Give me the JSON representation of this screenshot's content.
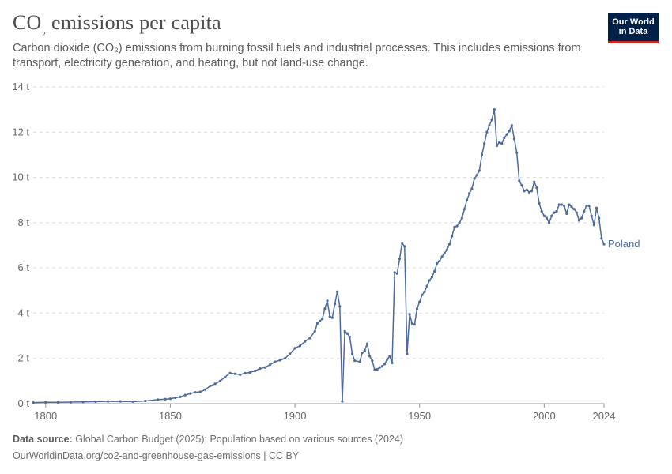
{
  "header": {
    "title_main": "CO",
    "title_sub": "₂",
    "title_rest": " emissions per capita",
    "subtitle": "Carbon dioxide (CO₂) emissions from burning fossil fuels and industrial processes. This includes emissions from transport, electricity generation, and heating, but not land-use change."
  },
  "logo": {
    "line1": "Our World",
    "line2": "in Data",
    "bg_color": "#002147",
    "accent_color": "#ce261e"
  },
  "footer": {
    "source_label": "Data source:",
    "source_text": " Global Carbon Budget (2025); Population based on various sources (2024)",
    "link": "OurWorldinData.org/co2-and-greenhouse-gas-emissions | CC BY"
  },
  "chart_data": {
    "type": "line",
    "title": "CO₂ emissions per capita",
    "xlabel": "",
    "ylabel": "",
    "xlim": [
      1795,
      2024
    ],
    "ylim": [
      0,
      14
    ],
    "grid": true,
    "y_ticks": [
      {
        "value": 0,
        "label": "0 t"
      },
      {
        "value": 2,
        "label": "2 t"
      },
      {
        "value": 4,
        "label": "4 t"
      },
      {
        "value": 6,
        "label": "6 t"
      },
      {
        "value": 8,
        "label": "8 t"
      },
      {
        "value": 10,
        "label": "10 t"
      },
      {
        "value": 12,
        "label": "12 t"
      },
      {
        "value": 14,
        "label": "14 t"
      }
    ],
    "x_ticks": [
      {
        "value": 1800,
        "label": "1800"
      },
      {
        "value": 1850,
        "label": "1850"
      },
      {
        "value": 1900,
        "label": "1900"
      },
      {
        "value": 1950,
        "label": "1950"
      },
      {
        "value": 2000,
        "label": "2000"
      },
      {
        "value": 2024,
        "label": "2024"
      }
    ],
    "series": [
      {
        "name": "Poland",
        "color": "#4c6a9c",
        "points": [
          [
            1795,
            0.05
          ],
          [
            1800,
            0.06
          ],
          [
            1805,
            0.06
          ],
          [
            1810,
            0.07
          ],
          [
            1815,
            0.08
          ],
          [
            1820,
            0.09
          ],
          [
            1825,
            0.1
          ],
          [
            1830,
            0.1
          ],
          [
            1835,
            0.09
          ],
          [
            1840,
            0.12
          ],
          [
            1845,
            0.18
          ],
          [
            1848,
            0.2
          ],
          [
            1850,
            0.22
          ],
          [
            1852,
            0.26
          ],
          [
            1854,
            0.3
          ],
          [
            1856,
            0.38
          ],
          [
            1858,
            0.45
          ],
          [
            1860,
            0.5
          ],
          [
            1862,
            0.52
          ],
          [
            1864,
            0.62
          ],
          [
            1866,
            0.78
          ],
          [
            1868,
            0.88
          ],
          [
            1870,
            1.0
          ],
          [
            1872,
            1.18
          ],
          [
            1874,
            1.35
          ],
          [
            1876,
            1.32
          ],
          [
            1878,
            1.28
          ],
          [
            1880,
            1.35
          ],
          [
            1882,
            1.38
          ],
          [
            1884,
            1.45
          ],
          [
            1886,
            1.55
          ],
          [
            1888,
            1.6
          ],
          [
            1890,
            1.72
          ],
          [
            1892,
            1.85
          ],
          [
            1894,
            1.92
          ],
          [
            1896,
            2.0
          ],
          [
            1898,
            2.2
          ],
          [
            1900,
            2.45
          ],
          [
            1902,
            2.55
          ],
          [
            1904,
            2.75
          ],
          [
            1906,
            2.9
          ],
          [
            1908,
            3.2
          ],
          [
            1909,
            3.55
          ],
          [
            1910,
            3.65
          ],
          [
            1911,
            3.75
          ],
          [
            1912,
            4.2
          ],
          [
            1913,
            4.55
          ],
          [
            1914,
            3.85
          ],
          [
            1915,
            3.8
          ],
          [
            1916,
            4.4
          ],
          [
            1917,
            4.95
          ],
          [
            1918,
            4.3
          ],
          [
            1919,
            0.1
          ],
          [
            1920,
            3.2
          ],
          [
            1921,
            3.1
          ],
          [
            1922,
            2.95
          ],
          [
            1923,
            2.2
          ],
          [
            1924,
            1.9
          ],
          [
            1926,
            1.85
          ],
          [
            1927,
            2.25
          ],
          [
            1928,
            2.35
          ],
          [
            1929,
            2.65
          ],
          [
            1930,
            2.1
          ],
          [
            1931,
            1.9
          ],
          [
            1932,
            1.5
          ],
          [
            1933,
            1.52
          ],
          [
            1934,
            1.6
          ],
          [
            1935,
            1.65
          ],
          [
            1936,
            1.75
          ],
          [
            1937,
            1.95
          ],
          [
            1938,
            2.1
          ],
          [
            1939,
            1.8
          ],
          [
            1940,
            5.8
          ],
          [
            1941,
            5.75
          ],
          [
            1942,
            6.4
          ],
          [
            1943,
            7.1
          ],
          [
            1944,
            6.95
          ],
          [
            1945,
            2.2
          ],
          [
            1946,
            3.95
          ],
          [
            1947,
            3.55
          ],
          [
            1948,
            3.5
          ],
          [
            1949,
            4.2
          ],
          [
            1950,
            4.5
          ],
          [
            1951,
            4.8
          ],
          [
            1952,
            4.95
          ],
          [
            1953,
            5.2
          ],
          [
            1954,
            5.45
          ],
          [
            1955,
            5.6
          ],
          [
            1956,
            5.85
          ],
          [
            1957,
            6.2
          ],
          [
            1958,
            6.3
          ],
          [
            1959,
            6.5
          ],
          [
            1960,
            6.65
          ],
          [
            1961,
            6.8
          ],
          [
            1962,
            7.05
          ],
          [
            1963,
            7.4
          ],
          [
            1964,
            7.8
          ],
          [
            1965,
            7.85
          ],
          [
            1966,
            8.0
          ],
          [
            1967,
            8.2
          ],
          [
            1968,
            8.6
          ],
          [
            1969,
            9.0
          ],
          [
            1970,
            9.3
          ],
          [
            1971,
            9.5
          ],
          [
            1972,
            9.95
          ],
          [
            1973,
            10.1
          ],
          [
            1974,
            10.3
          ],
          [
            1975,
            11.0
          ],
          [
            1976,
            11.5
          ],
          [
            1977,
            12.0
          ],
          [
            1978,
            12.3
          ],
          [
            1979,
            12.55
          ],
          [
            1980,
            13.0
          ],
          [
            1981,
            11.4
          ],
          [
            1982,
            11.55
          ],
          [
            1983,
            11.5
          ],
          [
            1984,
            11.75
          ],
          [
            1985,
            11.9
          ],
          [
            1986,
            12.05
          ],
          [
            1987,
            12.3
          ],
          [
            1988,
            11.7
          ],
          [
            1989,
            11.1
          ],
          [
            1990,
            9.85
          ],
          [
            1991,
            9.65
          ],
          [
            1992,
            9.4
          ],
          [
            1993,
            9.45
          ],
          [
            1994,
            9.35
          ],
          [
            1995,
            9.4
          ],
          [
            1996,
            9.8
          ],
          [
            1997,
            9.55
          ],
          [
            1998,
            8.85
          ],
          [
            1999,
            8.5
          ],
          [
            2000,
            8.3
          ],
          [
            2001,
            8.2
          ],
          [
            2002,
            8.0
          ],
          [
            2003,
            8.3
          ],
          [
            2004,
            8.45
          ],
          [
            2005,
            8.5
          ],
          [
            2006,
            8.8
          ],
          [
            2007,
            8.8
          ],
          [
            2008,
            8.75
          ],
          [
            2009,
            8.4
          ],
          [
            2010,
            8.8
          ],
          [
            2011,
            8.7
          ],
          [
            2012,
            8.6
          ],
          [
            2013,
            8.45
          ],
          [
            2014,
            8.1
          ],
          [
            2015,
            8.2
          ],
          [
            2016,
            8.5
          ],
          [
            2017,
            8.75
          ],
          [
            2018,
            8.75
          ],
          [
            2019,
            8.3
          ],
          [
            2020,
            7.9
          ],
          [
            2021,
            8.65
          ],
          [
            2022,
            8.2
          ],
          [
            2023,
            7.3
          ],
          [
            2024,
            7.05
          ]
        ]
      }
    ]
  }
}
